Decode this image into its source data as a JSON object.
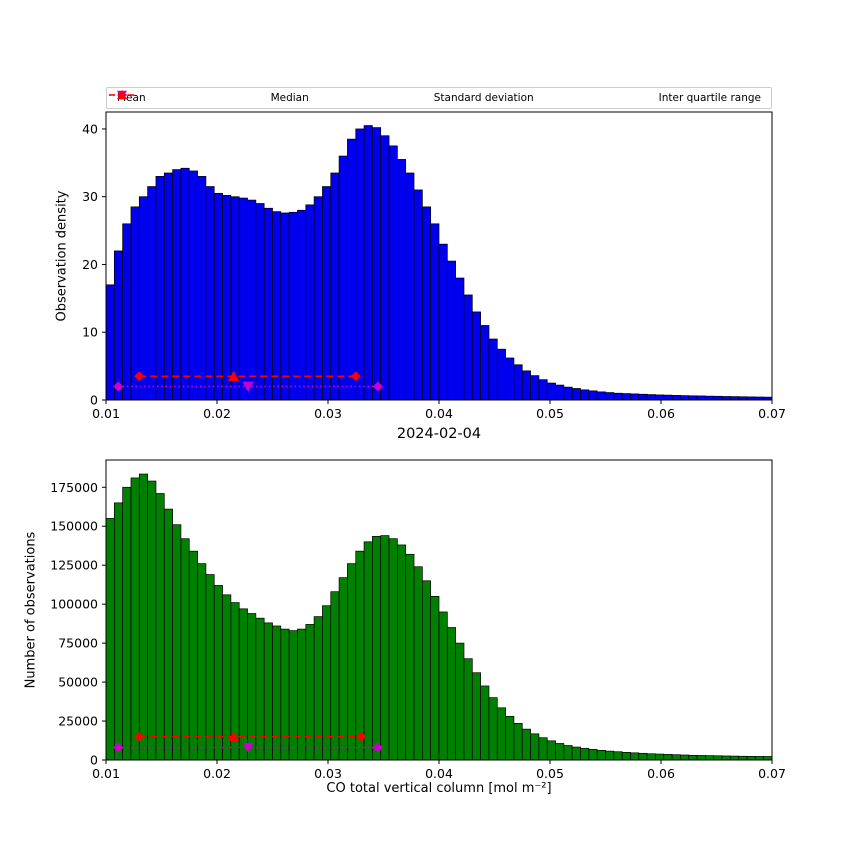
{
  "figure": {
    "background": "#ffffff"
  },
  "colors": {
    "blue_bar": "#0000ee",
    "green_bar": "#008000",
    "bar_edge": "#000000",
    "magenta": "#cc00cc",
    "red": "#ff0000",
    "axis": "#000000",
    "legend_border": "#cccccc"
  },
  "legend": {
    "items": [
      {
        "label": "Mean",
        "marker": "triangle-down",
        "line": "none",
        "color": "#cc00cc"
      },
      {
        "label": "Median",
        "marker": "triangle-up",
        "line": "none",
        "color": "#ff0000"
      },
      {
        "label": "Standard deviation",
        "marker": "diamond",
        "line": "dotted",
        "color": "#cc00cc"
      },
      {
        "label": "Inter quartile range",
        "marker": "diamond",
        "line": "dashed",
        "color": "#ff0000"
      }
    ]
  },
  "chart_data": [
    {
      "type": "bar",
      "name": "observation-density-histogram",
      "title": "2024-02-04",
      "ylabel": "Observation density",
      "xlabel": "",
      "bar_color": "#0000ee",
      "bin_start": 0.01,
      "bin_width": 0.00075,
      "xlim": [
        0.01,
        0.07
      ],
      "ylim": [
        0,
        42.5
      ],
      "xticks": [
        0.01,
        0.02,
        0.03,
        0.04,
        0.05,
        0.06,
        0.07
      ],
      "yticks": [
        0,
        10,
        20,
        30,
        40
      ],
      "grid": false,
      "values": [
        17,
        22,
        26,
        28.5,
        30,
        31.5,
        33,
        33.5,
        34,
        34.2,
        33.8,
        33,
        31.5,
        30.5,
        30.2,
        30,
        29.8,
        29.5,
        29,
        28.3,
        27.8,
        27.6,
        27.7,
        28,
        28.8,
        30,
        31.5,
        33.5,
        36,
        38.5,
        40,
        40.5,
        40.2,
        39,
        37.5,
        35.5,
        33.5,
        31,
        28.5,
        26,
        23,
        20.5,
        18,
        15.5,
        13,
        11,
        9,
        7.5,
        6.2,
        5.2,
        4.3,
        3.6,
        3,
        2.5,
        2.2,
        1.9,
        1.7,
        1.5,
        1.35,
        1.2,
        1.1,
        1.0,
        0.95,
        0.9,
        0.85,
        0.8,
        0.75,
        0.72,
        0.68,
        0.65,
        0.62,
        0.6,
        0.57,
        0.55,
        0.52,
        0.5,
        0.48,
        0.46,
        0.44,
        0.42
      ],
      "stats": {
        "mean": 0.0228,
        "median": 0.0215,
        "std_lo": 0.0111,
        "std_hi": 0.0345,
        "q1": 0.013,
        "q3": 0.0325,
        "iqr_line_y": 3.5,
        "std_line_y": 2.0
      }
    },
    {
      "type": "bar",
      "name": "number-of-observations-histogram",
      "title": "",
      "ylabel": "Number of observations",
      "xlabel": "CO total vertical column [mol m⁻²]",
      "bar_color": "#008000",
      "bin_start": 0.01,
      "bin_width": 0.00075,
      "xlim": [
        0.01,
        0.07
      ],
      "ylim": [
        0,
        192500
      ],
      "xticks": [
        0.01,
        0.02,
        0.03,
        0.04,
        0.05,
        0.06,
        0.07
      ],
      "yticks": [
        0,
        25000,
        50000,
        75000,
        100000,
        125000,
        150000,
        175000
      ],
      "grid": false,
      "values": [
        155000,
        165000,
        175000,
        181000,
        183500,
        179000,
        171000,
        161000,
        151000,
        142000,
        134000,
        126000,
        119000,
        112000,
        106000,
        101000,
        97000,
        94000,
        91000,
        88000,
        86000,
        84000,
        83000,
        84000,
        87000,
        92000,
        99000,
        108000,
        117000,
        126000,
        134000,
        140000,
        143500,
        144000,
        142000,
        138000,
        132000,
        124000,
        115000,
        105000,
        95000,
        85000,
        75000,
        65000,
        56000,
        47500,
        40000,
        33500,
        28000,
        23500,
        19800,
        16800,
        14300,
        12300,
        10600,
        9300,
        8300,
        7500,
        6800,
        6200,
        5700,
        5300,
        4900,
        4600,
        4300,
        4000,
        3800,
        3600,
        3400,
        3200,
        3000,
        2900,
        2800,
        2700,
        2600,
        2500,
        2400,
        2350,
        2300,
        2250
      ],
      "stats": {
        "mean": 0.0228,
        "median": 0.0215,
        "std_lo": 0.0111,
        "std_hi": 0.0345,
        "q1": 0.013,
        "q3": 0.033,
        "iqr_line_y": 15000,
        "std_line_y": 8000
      }
    }
  ]
}
